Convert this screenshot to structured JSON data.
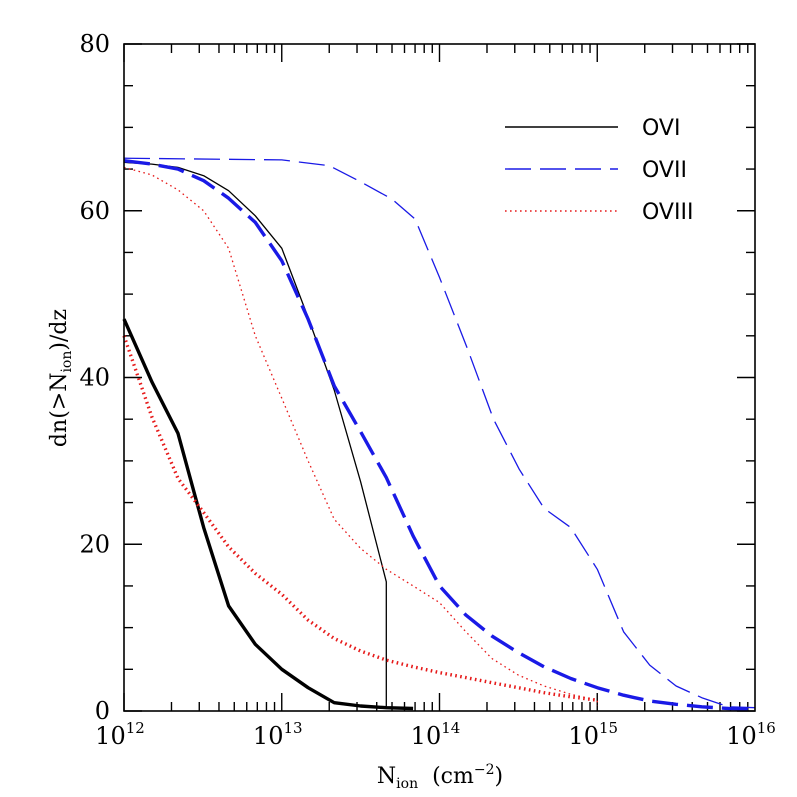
{
  "chart_data": {
    "type": "line",
    "xscale": "log",
    "xlim": [
      1000000000000.0,
      1e+16
    ],
    "ylim": [
      0,
      80
    ],
    "x_ticks": [
      {
        "value": 1000000000000.0,
        "base": "10",
        "exp": "12"
      },
      {
        "value": 10000000000000.0,
        "base": "10",
        "exp": "13"
      },
      {
        "value": 100000000000000.0,
        "base": "10",
        "exp": "14"
      },
      {
        "value": 1000000000000000.0,
        "base": "10",
        "exp": "15"
      },
      {
        "value": 1e+16,
        "base": "10",
        "exp": "16"
      }
    ],
    "y_ticks": [
      0,
      20,
      40,
      60,
      80
    ],
    "xlabel": {
      "main": "N",
      "sub": "ion",
      "unit_open": "(cm",
      "unit_exp": "−2",
      "unit_close": ")"
    },
    "ylabel": {
      "pre": "dn(>N",
      "sub": "ion",
      "post": ")/dz"
    },
    "legend_position": "top-right",
    "series": [
      {
        "name": "OVI",
        "legend": true,
        "color": "#000000",
        "style": "solid",
        "weight": "thin",
        "x": [
          1000000000000.0,
          1500000000000.0,
          2200000000000.0,
          3200000000000.0,
          4600000000000.0,
          6800000000000.0,
          10000000000000.0,
          14700000000000.0,
          21500000000000.0,
          31600000000000.0,
          46000000000000.0,
          46000000000000.0
        ],
        "y": [
          65.8,
          65.6,
          65.2,
          64.2,
          62.4,
          59.4,
          55.5,
          47.2,
          38.5,
          27.5,
          15.5,
          0.4
        ]
      },
      {
        "name": "OVII",
        "legend": true,
        "color": "#1a1ae6",
        "style": "dashed",
        "weight": "thin",
        "x": [
          1000000000000.0,
          10000000000000.0,
          20000000000000.0,
          30000000000000.0,
          50000000000000.0,
          70000000000000.0,
          100000000000000.0,
          150000000000000.0,
          220000000000000.0,
          320000000000000.0,
          460000000000000.0,
          680000000000000.0,
          1000000000000000.0,
          1470000000000000.0,
          2150000000000000.0,
          3160000000000000.0,
          4600000000000000.0,
          6800000000000000.0,
          1e+16
        ],
        "y": [
          66.3,
          66.1,
          65.4,
          63.7,
          61.4,
          59.0,
          52.0,
          43.5,
          35.0,
          29.0,
          24.3,
          22.0,
          17.0,
          9.5,
          5.5,
          3.0,
          1.6,
          0.5,
          0.4
        ]
      },
      {
        "name": "OVIII",
        "legend": true,
        "color": "#e61a1a",
        "style": "dotted",
        "weight": "thin",
        "x": [
          1000000000000.0,
          1500000000000.0,
          2200000000000.0,
          3200000000000.0,
          4600000000000.0,
          6800000000000.0,
          10000000000000.0,
          14700000000000.0,
          21500000000000.0,
          31600000000000.0,
          46000000000000.0,
          68000000000000.0,
          100000000000000.0,
          147000000000000.0,
          215000000000000.0,
          316000000000000.0,
          460000000000000.0,
          680000000000000.0,
          1000000000000000.0,
          1000000000000000.0
        ],
        "y": [
          65.2,
          64.3,
          62.5,
          60.0,
          55.5,
          45.0,
          37.5,
          30.0,
          23.0,
          19.5,
          17.0,
          15.0,
          13.0,
          9.5,
          6.3,
          4.3,
          3.0,
          2.0,
          1.3,
          0.6
        ]
      },
      {
        "name": "",
        "legend": false,
        "color": "#000000",
        "style": "solid",
        "weight": "thick",
        "x": [
          1000000000000.0,
          1500000000000.0,
          2200000000000.0,
          3200000000000.0,
          4600000000000.0,
          6800000000000.0,
          10000000000000.0,
          14700000000000.0,
          21500000000000.0,
          31600000000000.0,
          46000000000000.0,
          68000000000000.0
        ],
        "y": [
          47.0,
          39.5,
          33.3,
          22.0,
          12.6,
          8.0,
          5.0,
          2.8,
          1.0,
          0.6,
          0.4,
          0.3
        ]
      },
      {
        "name": "",
        "legend": false,
        "color": "#1a1ae6",
        "style": "dashed",
        "weight": "thick",
        "x": [
          1000000000000.0,
          1500000000000.0,
          2200000000000.0,
          3200000000000.0,
          4600000000000.0,
          6800000000000.0,
          10000000000000.0,
          14700000000000.0,
          21500000000000.0,
          31600000000000.0,
          46000000000000.0,
          68000000000000.0,
          100000000000000.0,
          147000000000000.0,
          215000000000000.0,
          316000000000000.0,
          460000000000000.0,
          680000000000000.0,
          1000000000000000.0,
          1470000000000000.0,
          2150000000000000.0,
          3160000000000000.0,
          4600000000000000.0,
          6800000000000000.0,
          1e+16
        ],
        "y": [
          66.0,
          65.6,
          65.0,
          63.6,
          61.5,
          58.6,
          54.0,
          47.0,
          39.0,
          33.5,
          28.0,
          21.0,
          15.0,
          11.5,
          9.0,
          7.0,
          5.3,
          3.9,
          2.8,
          1.9,
          1.2,
          0.8,
          0.5,
          0.3,
          0.2
        ]
      },
      {
        "name": "",
        "legend": false,
        "color": "#e61a1a",
        "style": "dotted",
        "weight": "thick",
        "x": [
          1000000000000.0,
          1500000000000.0,
          2200000000000.0,
          3200000000000.0,
          4600000000000.0,
          6800000000000.0,
          10000000000000.0,
          14700000000000.0,
          21500000000000.0,
          31600000000000.0,
          46000000000000.0,
          68000000000000.0,
          100000000000000.0,
          147000000000000.0,
          215000000000000.0,
          316000000000000.0,
          460000000000000.0,
          680000000000000.0,
          1000000000000000.0
        ],
        "y": [
          45.0,
          35.3,
          27.9,
          23.8,
          19.7,
          16.5,
          14.0,
          10.9,
          8.7,
          7.2,
          6.1,
          5.3,
          4.6,
          4.0,
          3.4,
          2.8,
          2.2,
          1.7,
          1.3
        ]
      }
    ]
  }
}
